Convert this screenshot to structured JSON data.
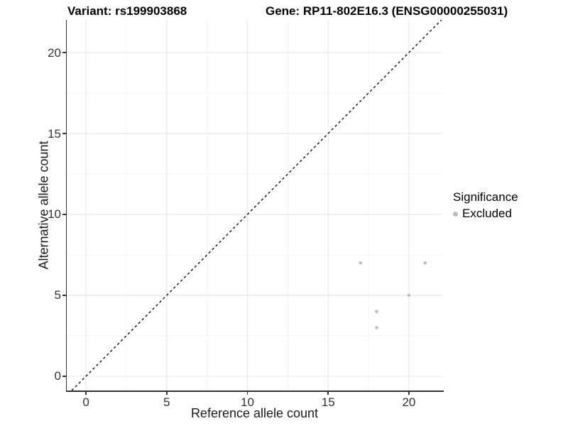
{
  "titles": {
    "variant": "Variant: rs199903868",
    "gene": "Gene: RP11-802E16.3 (ENSG00000255031)"
  },
  "axes": {
    "x_label": "Reference allele count",
    "y_label": "Alternative allele count"
  },
  "legend": {
    "title": "Significance",
    "items": [
      {
        "label": "Excluded",
        "color": "#bdbdbd"
      }
    ]
  },
  "colors": {
    "background": "#ffffff",
    "major_grid": "#e8e8e8",
    "minor_grid": "#f3f3f3",
    "axis_line": "#333333",
    "identity_line": "#111111",
    "point": "#bdbdbd",
    "title_text": "#000000",
    "axis_text": "#333333"
  },
  "chart_data": {
    "type": "scatter",
    "title": "Variant: rs199903868 | Gene: RP11-802E16.3 (ENSG00000255031)",
    "xlabel": "Reference allele count",
    "ylabel": "Alternative allele count",
    "x_ticks": [
      0,
      5,
      10,
      15,
      20
    ],
    "y_ticks": [
      0,
      5,
      10,
      15,
      20
    ],
    "x_minor": [
      2.5,
      7.5,
      12.5,
      17.5
    ],
    "y_minor": [
      2.5,
      7.5,
      12.5,
      17.5
    ],
    "xlim": [
      -1.19,
      22.07
    ],
    "ylim": [
      -0.88,
      22.02
    ],
    "grid": true,
    "legend_position": "right",
    "identity_line": {
      "show": true,
      "style": "dashed",
      "color": "#111111"
    },
    "series": [
      {
        "name": "Excluded",
        "color": "#bdbdbd",
        "points": [
          {
            "x": 17,
            "y": 7
          },
          {
            "x": 21,
            "y": 7
          },
          {
            "x": 20,
            "y": 5
          },
          {
            "x": 18,
            "y": 4
          },
          {
            "x": 18,
            "y": 3
          }
        ]
      }
    ]
  }
}
